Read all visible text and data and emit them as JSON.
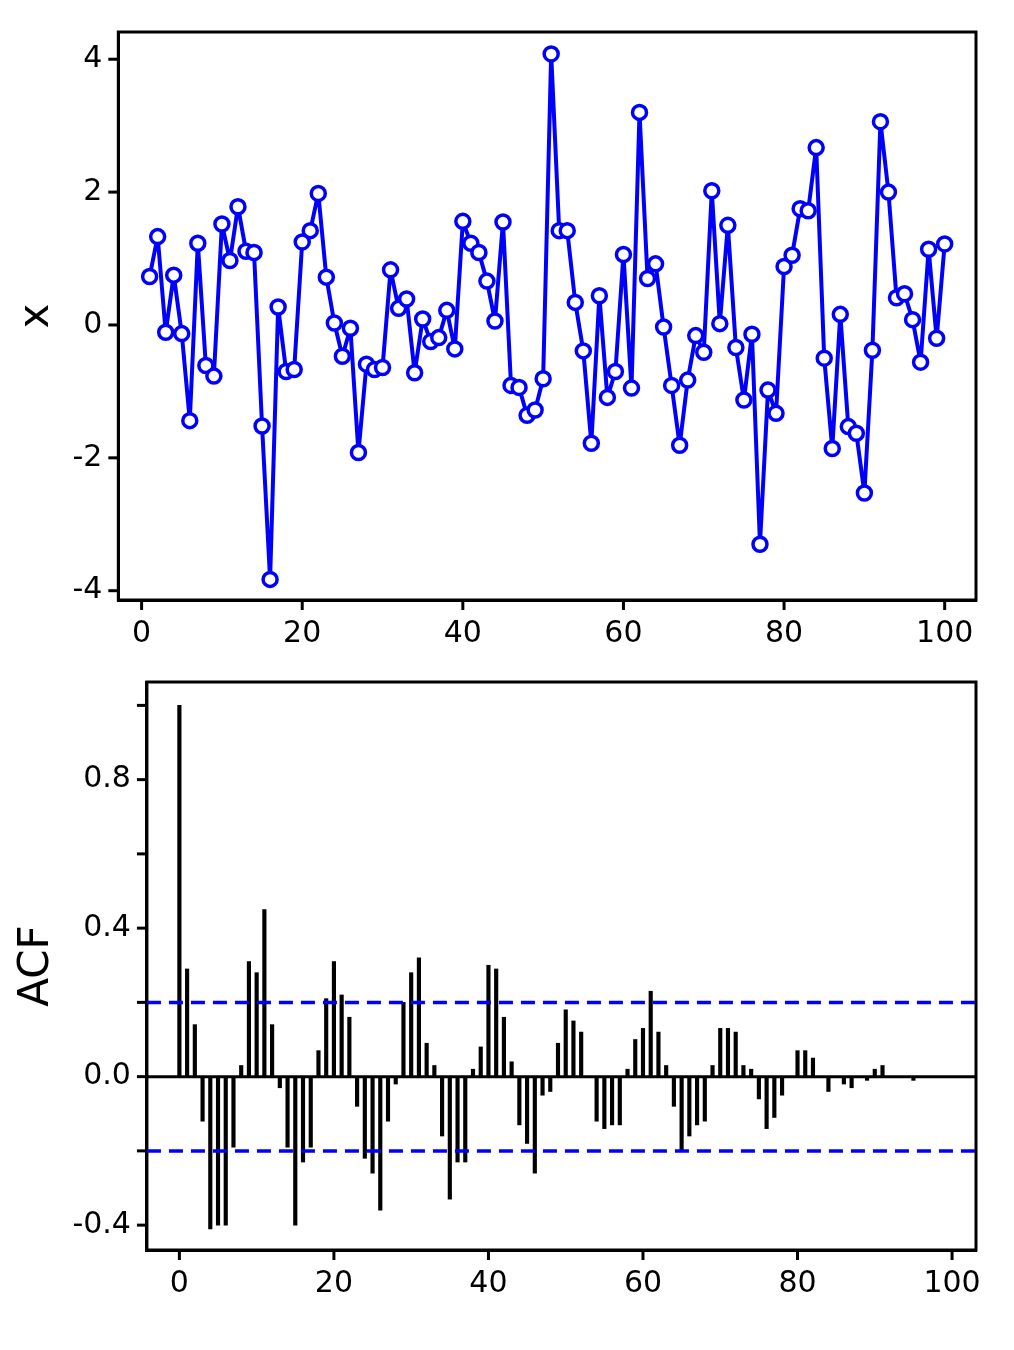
{
  "chart_data": [
    {
      "type": "line",
      "ylabel": "x",
      "x": [
        1,
        2,
        3,
        4,
        5,
        6,
        7,
        8,
        9,
        10,
        11,
        12,
        13,
        14,
        15,
        16,
        17,
        18,
        19,
        20,
        21,
        22,
        23,
        24,
        25,
        26,
        27,
        28,
        29,
        30,
        31,
        32,
        33,
        34,
        35,
        36,
        37,
        38,
        39,
        40,
        41,
        42,
        43,
        44,
        45,
        46,
        47,
        48,
        49,
        50,
        51,
        52,
        53,
        54,
        55,
        56,
        57,
        58,
        59,
        60,
        61,
        62,
        63,
        64,
        65,
        66,
        67,
        68,
        69,
        70,
        71,
        72,
        73,
        74,
        75,
        76,
        77,
        78,
        79,
        80,
        81,
        82,
        83,
        84,
        85,
        86,
        87,
        88,
        89,
        90,
        91,
        92,
        93,
        94,
        95,
        96,
        97,
        98,
        99,
        100
      ],
      "series": [
        {
          "color": "#0000ff",
          "values": [
            0.73,
            1.33,
            -0.11,
            0.75,
            -0.13,
            -1.44,
            1.23,
            -0.61,
            -0.77,
            1.52,
            0.97,
            1.78,
            1.11,
            1.09,
            -1.52,
            -3.83,
            0.27,
            -0.7,
            -0.67,
            1.25,
            1.42,
            1.98,
            0.72,
            0.03,
            -0.47,
            -0.05,
            -1.92,
            -0.59,
            -0.67,
            -0.64,
            0.83,
            0.25,
            0.39,
            -0.72,
            0.09,
            -0.25,
            -0.19,
            0.22,
            -0.36,
            1.56,
            1.23,
            1.09,
            0.66,
            0.06,
            1.55,
            -0.91,
            -0.94,
            -1.36,
            -1.28,
            -0.81,
            4.08,
            1.42,
            1.42,
            0.34,
            -0.39,
            -1.78,
            0.44,
            -1.09,
            -0.7,
            1.06,
            -0.95,
            3.2,
            0.7,
            0.92,
            -0.03,
            -0.91,
            -1.81,
            -0.83,
            -0.16,
            -0.41,
            2.02,
            0.02,
            1.5,
            -0.34,
            -1.13,
            -0.14,
            -3.3,
            -0.98,
            -1.33,
            0.88,
            1.05,
            1.75,
            1.72,
            2.67,
            -0.5,
            -1.86,
            0.16,
            -1.53,
            -1.63,
            -2.53,
            -0.38,
            3.06,
            2.0,
            0.41,
            0.47,
            0.08,
            -0.56,
            1.14,
            -0.2,
            1.22
          ]
        }
      ],
      "marker": "circle",
      "line_style": "solid",
      "grid": false,
      "legend": false,
      "xlim": [
        -2.9,
        103.9
      ],
      "xticks": [
        0,
        20,
        40,
        60,
        80,
        100
      ],
      "ylim": [
        -4.14,
        4.41
      ],
      "yticks": [
        -4,
        -2,
        0,
        2,
        4
      ]
    },
    {
      "type": "bar",
      "ylabel": "ACF",
      "x": [
        0,
        1,
        2,
        3,
        4,
        5,
        6,
        7,
        8,
        9,
        10,
        11,
        12,
        13,
        14,
        15,
        16,
        17,
        18,
        19,
        20,
        21,
        22,
        23,
        24,
        25,
        26,
        27,
        28,
        29,
        30,
        31,
        32,
        33,
        34,
        35,
        36,
        37,
        38,
        39,
        40,
        41,
        42,
        43,
        44,
        45,
        46,
        47,
        48,
        49,
        50,
        51,
        52,
        53,
        54,
        55,
        56,
        57,
        58,
        59,
        60,
        61,
        62,
        63,
        64,
        65,
        66,
        67,
        68,
        69,
        70,
        71,
        72,
        73,
        74,
        75,
        76,
        77,
        78,
        79,
        80,
        81,
        82,
        83,
        84,
        85,
        86,
        87,
        88,
        89,
        90,
        91,
        92,
        93,
        94,
        95,
        96,
        97
      ],
      "series": [
        {
          "color": "#000000",
          "values": [
            1.0,
            0.29,
            0.14,
            -0.12,
            -0.41,
            -0.4,
            -0.4,
            -0.19,
            0.03,
            0.31,
            0.28,
            0.45,
            0.14,
            -0.03,
            -0.19,
            -0.4,
            -0.23,
            -0.19,
            0.07,
            0.21,
            0.31,
            0.22,
            0.16,
            -0.08,
            -0.22,
            -0.26,
            -0.36,
            -0.12,
            -0.02,
            0.2,
            0.28,
            0.32,
            0.09,
            0.03,
            -0.16,
            -0.33,
            -0.23,
            -0.23,
            0.02,
            0.08,
            0.3,
            0.29,
            0.16,
            0.04,
            -0.13,
            -0.18,
            -0.26,
            -0.05,
            -0.04,
            0.09,
            0.18,
            0.15,
            0.12,
            0.0,
            -0.12,
            -0.14,
            -0.13,
            -0.13,
            0.02,
            0.1,
            0.13,
            0.23,
            0.12,
            0.03,
            -0.08,
            -0.2,
            -0.16,
            -0.13,
            -0.12,
            0.03,
            0.13,
            0.13,
            0.12,
            0.03,
            0.02,
            -0.06,
            -0.14,
            -0.11,
            -0.05,
            0.0,
            0.07,
            0.07,
            0.05,
            null,
            -0.04,
            0.0,
            -0.02,
            -0.03,
            0.0,
            -0.01,
            0.02,
            0.03,
            0.0,
            null,
            0.0,
            -0.01,
            null,
            0.0
          ]
        }
      ],
      "ref_lines": [
        {
          "axis": "y",
          "value": 0.2,
          "color": "#0000ff",
          "line_style": "dashed"
        },
        {
          "axis": "y",
          "value": -0.2,
          "color": "#0000ff",
          "line_style": "dashed"
        }
      ],
      "grid": false,
      "legend": false,
      "xlim": [
        -4.2,
        103.1
      ],
      "xticks": [
        0,
        20,
        40,
        60,
        80,
        100
      ],
      "ylim": [
        -0.467,
        1.063
      ],
      "yticks": [
        {
          "value": -0.4,
          "label": "-0.4"
        },
        {
          "value": -0.2,
          "label": null
        },
        {
          "value": 0,
          "label": "0.0"
        },
        {
          "value": 0.2,
          "label": null
        },
        {
          "value": 0.4,
          "label": "0.4"
        },
        {
          "value": 0.6,
          "label": null
        },
        {
          "value": 0.8,
          "label": "0.8"
        },
        {
          "value": 1.0,
          "label": null
        }
      ]
    }
  ]
}
